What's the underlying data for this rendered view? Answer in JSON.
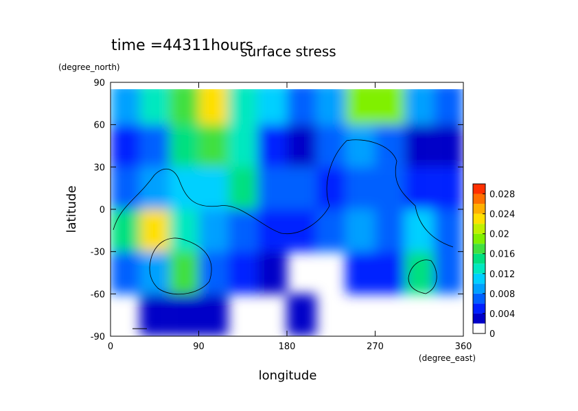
{
  "chart_data": {
    "type": "contour",
    "title": "surface stress",
    "subtitle": "time =44311hours",
    "xlabel": "longitude",
    "xunit": "(degree_east)",
    "ylabel": "latitude",
    "yunit": "(degree_north)",
    "xlim": [
      0,
      360
    ],
    "ylim": [
      -90,
      90
    ],
    "xticks": [
      0,
      90,
      180,
      270,
      360
    ],
    "yticks": [
      -90,
      -60,
      -30,
      0,
      30,
      60,
      90
    ],
    "lon_edges": [
      0,
      30,
      60,
      90,
      120,
      150,
      180,
      210,
      240,
      270,
      300,
      330,
      360
    ],
    "lat_edges": [
      90,
      60,
      30,
      0,
      -30,
      -60,
      -90
    ],
    "z": [
      [
        0.008,
        0.012,
        0.016,
        0.022,
        0.012,
        0.01,
        0.006,
        0.008,
        0.018,
        0.018,
        0.008,
        0.006
      ],
      [
        0.004,
        0.006,
        0.014,
        0.016,
        0.012,
        0.004,
        0.003,
        0.006,
        0.008,
        0.006,
        0.003,
        0.003
      ],
      [
        0.006,
        0.008,
        0.01,
        0.01,
        0.014,
        0.006,
        0.006,
        0.005,
        0.006,
        0.006,
        0.004,
        0.004
      ],
      [
        0.014,
        0.022,
        0.012,
        0.008,
        0.006,
        0.004,
        0.005,
        0.006,
        0.008,
        0.006,
        0.01,
        0.006
      ],
      [
        0.006,
        0.008,
        0.016,
        0.006,
        0.004,
        0.003,
        null,
        null,
        0.004,
        0.004,
        0.014,
        0.006
      ],
      [
        null,
        0.003,
        0.002,
        0.003,
        null,
        null,
        0.002,
        null,
        null,
        null,
        null,
        null
      ]
    ],
    "clim": [
      0,
      0.03
    ],
    "cticks": [
      0,
      0.004,
      0.008,
      0.012,
      0.016,
      0.02,
      0.024,
      0.028
    ],
    "colors": [
      "#ffffff",
      "#0000c8",
      "#0020ff",
      "#0060ff",
      "#00a0ff",
      "#00d0ff",
      "#00e8c0",
      "#00e080",
      "#40e040",
      "#80f000",
      "#c0f000",
      "#ffe000",
      "#ffb000",
      "#ff7000",
      "#ff3000"
    ]
  }
}
